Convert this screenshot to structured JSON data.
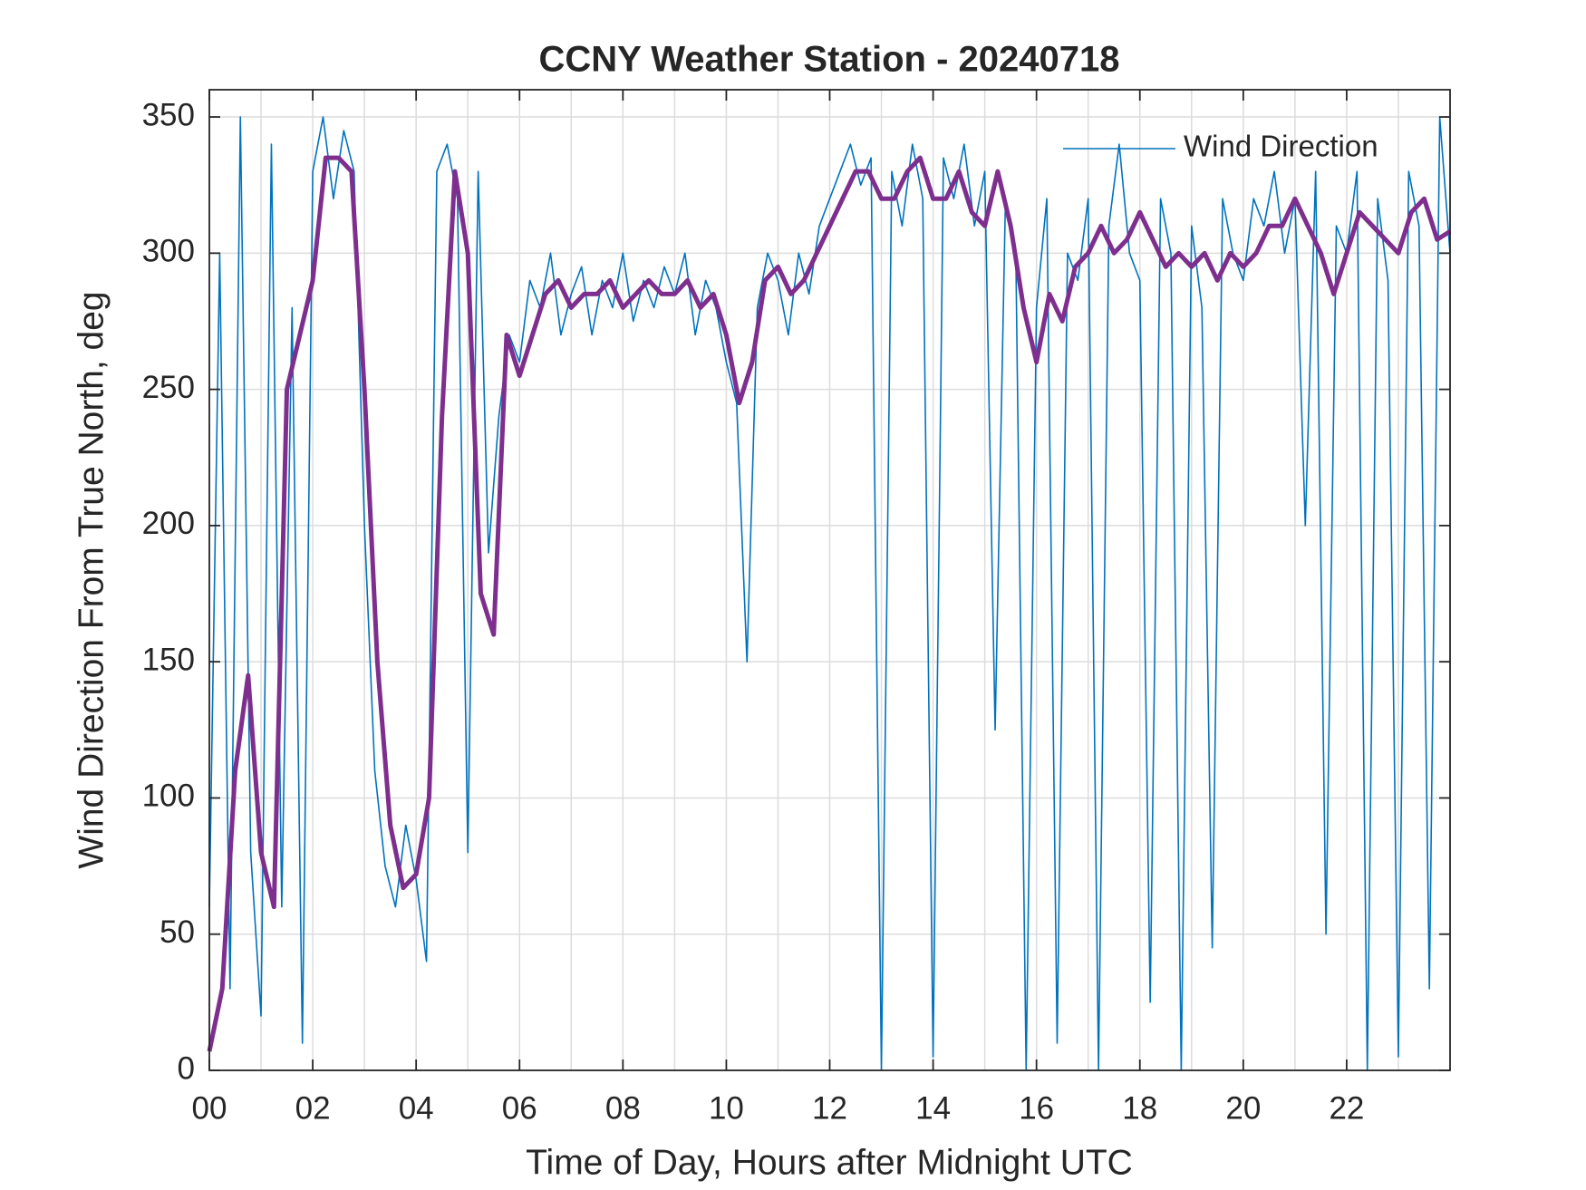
{
  "chart_data": {
    "type": "line",
    "title": "CCNY Weather Station - 20240718",
    "x_label": "Time of Day, Hours after Midnight UTC",
    "y_label": "Wind Direction From True North, deg",
    "xlim": [
      0,
      24
    ],
    "ylim": [
      0,
      360
    ],
    "xticks": [
      {
        "value": 0,
        "label": "00"
      },
      {
        "value": 2,
        "label": "02"
      },
      {
        "value": 4,
        "label": "04"
      },
      {
        "value": 6,
        "label": "06"
      },
      {
        "value": 8,
        "label": "08"
      },
      10,
      12,
      14,
      16,
      18,
      20,
      22
    ],
    "xminorticks": [
      1,
      3,
      5,
      7,
      9,
      11,
      13,
      15,
      17,
      19,
      21,
      23
    ],
    "yticks": [
      0,
      50,
      100,
      150,
      200,
      250,
      300,
      350
    ],
    "grid": true,
    "legend": "upper right",
    "series": [
      {
        "name": "Wind Direction",
        "color": "#0072bd",
        "x": [
          0,
          0.2,
          0.4,
          0.6,
          0.8,
          1,
          1.2,
          1.4,
          1.6,
          1.8,
          2,
          2.2,
          2.4,
          2.6,
          2.8,
          3,
          3.2,
          3.4,
          3.6,
          3.8,
          4,
          4.2,
          4.4,
          4.6,
          4.8,
          5,
          5.2,
          5.4,
          5.6,
          5.8,
          6,
          6.2,
          6.4,
          6.6,
          6.8,
          7,
          7.2,
          7.4,
          7.6,
          7.8,
          8,
          8.2,
          8.4,
          8.6,
          8.8,
          9,
          9.2,
          9.4,
          9.6,
          9.8,
          10,
          10.2,
          10.4,
          10.6,
          10.8,
          11,
          11.2,
          11.4,
          11.6,
          11.8,
          12,
          12.2,
          12.4,
          12.6,
          12.8,
          13,
          13.2,
          13.4,
          13.6,
          13.8,
          14,
          14.2,
          14.4,
          14.6,
          14.8,
          15,
          15.2,
          15.4,
          15.6,
          15.8,
          16,
          16.2,
          16.4,
          16.6,
          16.8,
          17,
          17.2,
          17.4,
          17.6,
          17.8,
          18,
          18.2,
          18.4,
          18.6,
          18.8,
          19,
          19.2,
          19.4,
          19.6,
          19.8,
          20,
          20.2,
          20.4,
          20.6,
          20.8,
          21,
          21.2,
          21.4,
          21.6,
          21.8,
          22,
          22.2,
          22.4,
          22.6,
          22.8,
          23,
          23.2,
          23.4,
          23.6,
          23.8,
          24
        ],
        "values": [
          60,
          300,
          30,
          350,
          80,
          20,
          340,
          60,
          280,
          10,
          330,
          350,
          320,
          345,
          330,
          200,
          110,
          75,
          60,
          90,
          70,
          40,
          330,
          340,
          320,
          80,
          330,
          190,
          240,
          270,
          260,
          290,
          280,
          300,
          270,
          285,
          295,
          270,
          290,
          280,
          300,
          275,
          290,
          280,
          295,
          285,
          300,
          270,
          290,
          280,
          260,
          245,
          150,
          280,
          300,
          290,
          270,
          300,
          285,
          310,
          320,
          330,
          340,
          325,
          335,
          0,
          330,
          310,
          340,
          320,
          5,
          335,
          320,
          340,
          310,
          330,
          125,
          320,
          300,
          0,
          280,
          320,
          10,
          300,
          290,
          320,
          0,
          310,
          340,
          300,
          290,
          25,
          320,
          300,
          0,
          310,
          280,
          45,
          320,
          300,
          290,
          320,
          310,
          330,
          300,
          320,
          200,
          330,
          50,
          310,
          300,
          330,
          0,
          320,
          290,
          5,
          330,
          310,
          30,
          350,
          300
        ]
      },
      {
        "color": "#7e2f8e",
        "x": [
          0,
          0.25,
          0.5,
          0.75,
          1,
          1.25,
          1.5,
          1.75,
          2,
          2.25,
          2.5,
          2.75,
          3,
          3.25,
          3.5,
          3.75,
          4,
          4.25,
          4.5,
          4.75,
          5,
          5.25,
          5.5,
          5.75,
          6,
          6.25,
          6.5,
          6.75,
          7,
          7.25,
          7.5,
          7.75,
          8,
          8.25,
          8.5,
          8.75,
          9,
          9.25,
          9.5,
          9.75,
          10,
          10.25,
          10.5,
          10.75,
          11,
          11.25,
          11.5,
          11.75,
          12,
          12.25,
          12.5,
          12.75,
          13,
          13.25,
          13.5,
          13.75,
          14,
          14.25,
          14.5,
          14.75,
          15,
          15.25,
          15.5,
          15.75,
          16,
          16.25,
          16.5,
          16.75,
          17,
          17.25,
          17.5,
          17.75,
          18,
          18.25,
          18.5,
          18.75,
          19,
          19.25,
          19.5,
          19.75,
          20,
          20.25,
          20.5,
          20.75,
          21,
          21.25,
          21.5,
          21.75,
          22,
          22.25,
          22.5,
          22.75,
          23,
          23.25,
          23.5,
          23.75,
          24
        ],
        "values": [
          7,
          30,
          110,
          145,
          80,
          60,
          250,
          270,
          290,
          335,
          335,
          330,
          250,
          150,
          90,
          67,
          72,
          100,
          240,
          330,
          300,
          175,
          160,
          270,
          255,
          270,
          285,
          290,
          280,
          285,
          285,
          290,
          280,
          285,
          290,
          285,
          285,
          290,
          280,
          285,
          270,
          245,
          260,
          290,
          295,
          285,
          290,
          300,
          310,
          320,
          330,
          330,
          320,
          320,
          330,
          335,
          320,
          320,
          330,
          315,
          310,
          330,
          310,
          280,
          260,
          285,
          275,
          295,
          300,
          310,
          300,
          305,
          315,
          305,
          295,
          300,
          295,
          300,
          290,
          300,
          295,
          300,
          310,
          310,
          320,
          310,
          300,
          285,
          300,
          315,
          310,
          305,
          300,
          315,
          320,
          305,
          308
        ]
      }
    ]
  }
}
